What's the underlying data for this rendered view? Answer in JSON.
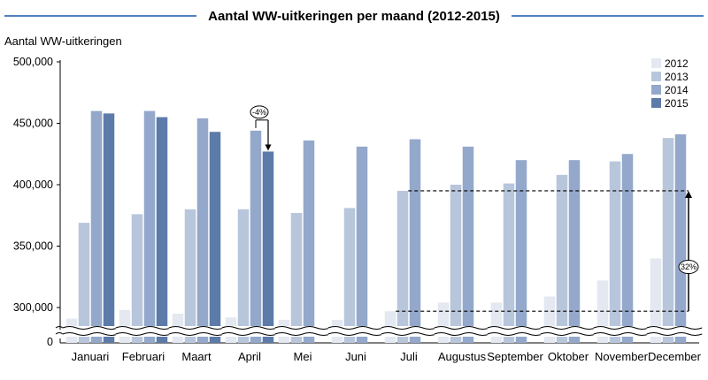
{
  "chart_data": {
    "type": "bar",
    "title": "Aantal WW-uitkeringen per maand (2012-2015)",
    "ylabel": "Aantal WW-uitkeringen",
    "xlabel": "",
    "categories": [
      "Januari",
      "Februari",
      "Maart",
      "April",
      "Mei",
      "Juni",
      "Juli",
      "Augustus",
      "September",
      "Oktober",
      "November",
      "December"
    ],
    "series": [
      {
        "name": "2012",
        "color": "#e3e8f1",
        "values": [
          291000,
          298000,
          295000,
          292000,
          290000,
          290000,
          297000,
          304000,
          304000,
          309000,
          322000,
          340000
        ]
      },
      {
        "name": "2013",
        "color": "#b8c6dc",
        "values": [
          369000,
          376000,
          380000,
          380000,
          377000,
          381000,
          395000,
          400000,
          401000,
          408000,
          419000,
          438000
        ]
      },
      {
        "name": "2014",
        "color": "#93a8cb",
        "values": [
          460000,
          460000,
          454000,
          444000,
          436000,
          431000,
          437000,
          431000,
          420000,
          420000,
          425000,
          441000
        ]
      },
      {
        "name": "2015",
        "color": "#5c7ba9",
        "values": [
          458000,
          455000,
          443000,
          427000,
          null,
          null,
          null,
          null,
          null,
          null,
          null,
          null
        ]
      }
    ],
    "yticks": [
      300000,
      350000,
      400000,
      450000,
      500000
    ],
    "ytick_labels": [
      "300,000",
      "350,000",
      "400,000",
      "450,000",
      "500,000"
    ],
    "ylim": [
      280000,
      500000
    ],
    "axis_break": true,
    "axis_zero_label": "0",
    "legend_position": "top-right",
    "grid": false,
    "annotations": [
      {
        "label": "-4%",
        "from_series": "2014",
        "to_series": "2015",
        "category": "April"
      },
      {
        "label": "32%",
        "from_value": 297000,
        "to_value": 395000,
        "from_category": "Juli",
        "to_category": "December"
      }
    ]
  }
}
